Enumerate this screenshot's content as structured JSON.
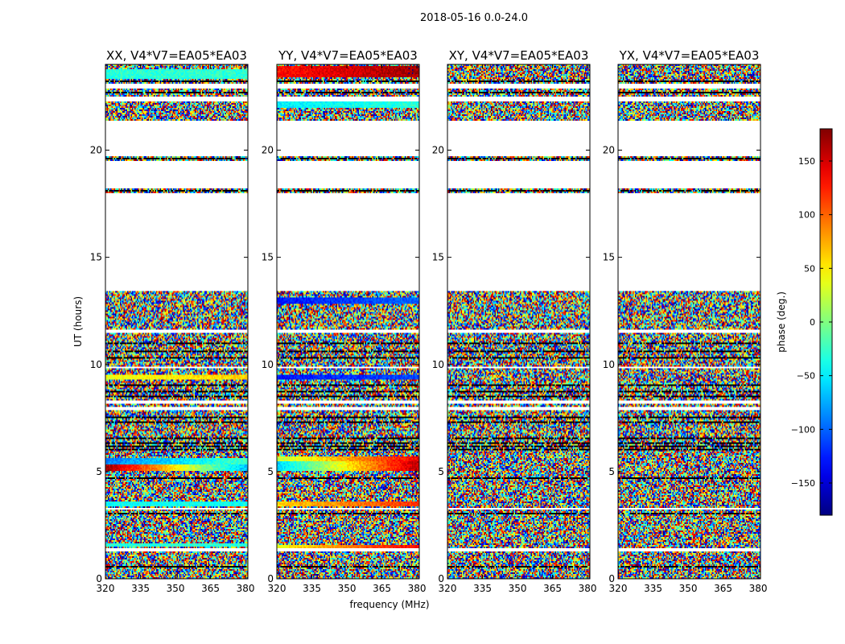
{
  "chart_data": {
    "type": "heatmap",
    "suptitle": "2018-05-16 0.0-24.0",
    "xlabel": "frequency (MHz)",
    "ylabel": "UT (hours)",
    "xlim": [
      320,
      381
    ],
    "ylim": [
      0,
      24
    ],
    "xticks": [
      320,
      335,
      350,
      365,
      380
    ],
    "yticks": [
      0,
      5,
      10,
      15,
      20
    ],
    "panels": [
      {
        "title": "XX, V4*V7=EA05*EA03",
        "pol": "XX"
      },
      {
        "title": "YY, V4*V7=EA05*EA03",
        "pol": "YY"
      },
      {
        "title": "XY, V4*V7=EA05*EA03",
        "pol": "XY"
      },
      {
        "title": "YX, V4*V7=EA05*EA03",
        "pol": "YX"
      }
    ],
    "colorbar": {
      "label": "phase (deg.)",
      "range": [
        -180,
        180
      ],
      "ticks": [
        -150,
        -100,
        -50,
        0,
        50,
        100,
        150
      ],
      "tick_labels": [
        "−150",
        "−100",
        "−50",
        "0",
        "50",
        "100",
        "150"
      ],
      "colormap": "jet"
    },
    "data_gaps_hours": [
      [
        13.4,
        18.0
      ],
      [
        18.2,
        19.5
      ],
      [
        19.7,
        21.4
      ],
      [
        1.3,
        1.45
      ],
      [
        3.2,
        3.3
      ],
      [
        7.85,
        8.0
      ],
      [
        8.15,
        8.3
      ],
      [
        9.8,
        9.9
      ],
      [
        11.5,
        11.6
      ],
      [
        22.3,
        22.5
      ],
      [
        22.9,
        23.1
      ]
    ],
    "coherent_bands": [
      {
        "pol": "XX",
        "t": [
          5.0,
          5.35
        ],
        "phase_start": 170,
        "phase_end": -70
      },
      {
        "pol": "XX",
        "t": [
          5.35,
          5.6
        ],
        "phase_start": -90,
        "phase_end": -20
      },
      {
        "pol": "XX",
        "t": [
          3.4,
          3.6
        ],
        "phase_start": -40,
        "phase_end": -40
      },
      {
        "pol": "XX",
        "t": [
          1.5,
          1.65
        ],
        "phase_start": -30,
        "phase_end": -30
      },
      {
        "pol": "XX",
        "t": [
          23.3,
          23.8
        ],
        "phase_start": -30,
        "phase_end": -30
      },
      {
        "pol": "XX",
        "t": [
          9.3,
          9.5
        ],
        "phase_start": 40,
        "phase_end": 60
      },
      {
        "pol": "YY",
        "t": [
          5.0,
          5.5
        ],
        "phase_start": -60,
        "phase_end": 160
      },
      {
        "pol": "YY",
        "t": [
          5.5,
          5.7
        ],
        "phase_start": 20,
        "phase_end": 140
      },
      {
        "pol": "YY",
        "t": [
          3.4,
          3.6
        ],
        "phase_start": 60,
        "phase_end": 120
      },
      {
        "pol": "YY",
        "t": [
          1.45,
          1.6
        ],
        "phase_start": 40,
        "phase_end": 140
      },
      {
        "pol": "YY",
        "t": [
          23.4,
          23.9
        ],
        "phase_start": 130,
        "phase_end": 170
      },
      {
        "pol": "YY",
        "t": [
          9.3,
          9.5
        ],
        "phase_start": -130,
        "phase_end": -110
      },
      {
        "pol": "YY",
        "t": [
          12.8,
          13.1
        ],
        "phase_start": -130,
        "phase_end": -100
      },
      {
        "pol": "YY",
        "t": [
          22.0,
          22.3
        ],
        "phase_start": -50,
        "phase_end": -30
      }
    ]
  }
}
